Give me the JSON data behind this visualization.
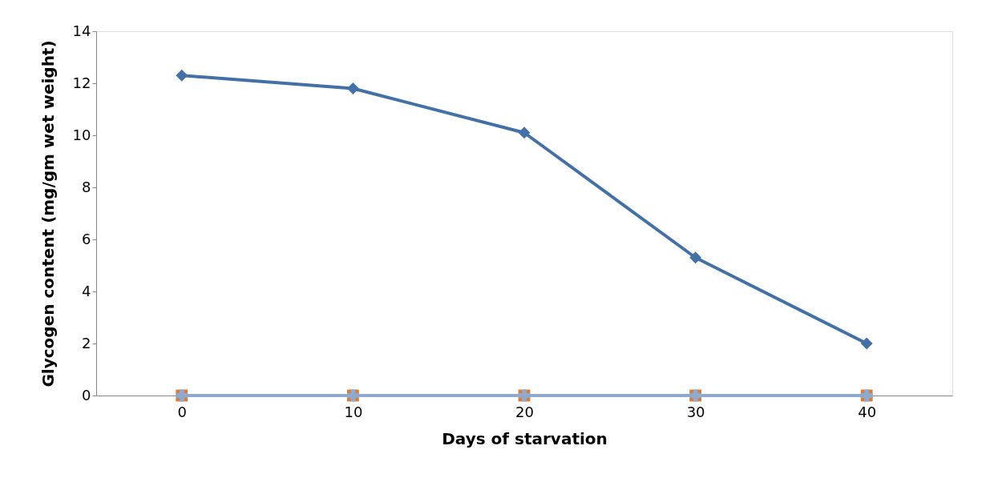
{
  "chart_data": {
    "type": "line",
    "xlabel": "Days of starvation",
    "ylabel": "Glycogen content (mg/gm wet weight)",
    "categories": [
      "0",
      "10",
      "20",
      "30",
      "40"
    ],
    "series": [
      {
        "color": "#4470a8",
        "values": [
          12.3,
          11.8,
          10.1,
          5.3,
          2.0
        ],
        "marker": "diamond"
      },
      {
        "type": "scatter",
        "color": "#e07b32",
        "values": [
          0,
          0,
          0,
          0,
          0
        ],
        "marker": "square"
      },
      {
        "color": "#8faad0",
        "values": [
          0,
          0,
          0,
          0,
          0
        ],
        "marker": "cross"
      }
    ],
    "ylim": [
      0,
      14
    ],
    "yticks": [
      0,
      2,
      4,
      6,
      8,
      10,
      12,
      14
    ],
    "grid": false
  }
}
